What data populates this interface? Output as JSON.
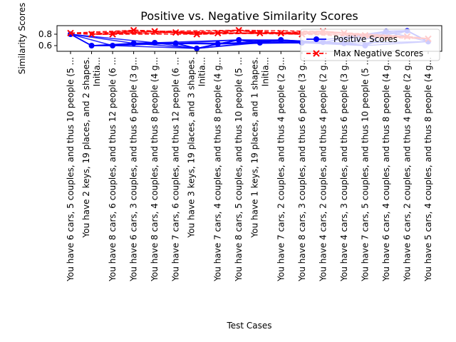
{
  "chart_data": {
    "type": "line",
    "title": "Positive vs. Negative Similarity Scores",
    "xlabel": "Test Cases",
    "ylabel": "Similarity Scores",
    "yticks": [
      0.6,
      0.8
    ],
    "ylim": [
      0.5,
      0.95
    ],
    "grid": false,
    "legend_position": "top-right",
    "categories": [
      "You have 6 cars, 5 couples, and thus 10 people (5 ...",
      "You have 2 keys, 19 places, and 2 shapes.\nInitia...",
      "You have 8 cars, 6 couples, and thus 12 people (6 ...",
      "You have 6 cars, 3 couples, and thus 6 people (3 g...",
      "You have 8 cars, 4 couples, and thus 8 people (4 g...",
      "You have 7 cars, 6 couples, and thus 12 people (6 ...",
      "You have 3 keys, 19 places, and 3 shapes.\nInitia...",
      "You have 7 cars, 4 couples, and thus 8 people (4 g...",
      "You have 8 cars, 5 couples, and thus 10 people (5 ...",
      "You have 1 keys, 19 places, and 1 shapes.\nInitia...",
      "You have 7 cars, 2 couples, and thus 4 people (2 g...",
      "You have 8 cars, 3 couples, and thus 6 people (3 g...",
      "You have 4 cars, 2 couples, and thus 4 people (2 g...",
      "You have 4 cars, 3 couples, and thus 6 people (3 g...",
      "You have 7 cars, 5 couples, and thus 10 people (5 ...",
      "You have 6 cars, 4 couples, and thus 8 people (4 g...",
      "You have 6 cars, 2 couples, and thus 4 people (2 g...",
      "You have 5 cars, 4 couples, and thus 8 people (4 g..."
    ],
    "series": [
      {
        "name": "Positive Scores",
        "color": "#0000ff",
        "marker": "circle",
        "linestyle": "solid",
        "values": [
          0.8,
          0.6,
          0.6,
          0.64,
          0.65,
          0.64,
          0.55,
          0.63,
          0.7,
          0.65,
          0.7,
          0.65,
          0.66,
          0.64,
          0.6,
          0.85,
          0.86,
          0.67
        ]
      },
      {
        "name": "Max Negative Scores",
        "color": "#ff0000",
        "marker": "x",
        "linestyle": "dashed",
        "values": [
          0.82,
          0.8,
          0.8,
          0.87,
          0.85,
          0.83,
          0.8,
          0.82,
          0.87,
          0.82,
          0.82,
          0.8,
          0.85,
          0.82,
          0.78,
          0.74,
          0.76,
          0.72
        ]
      }
    ]
  }
}
